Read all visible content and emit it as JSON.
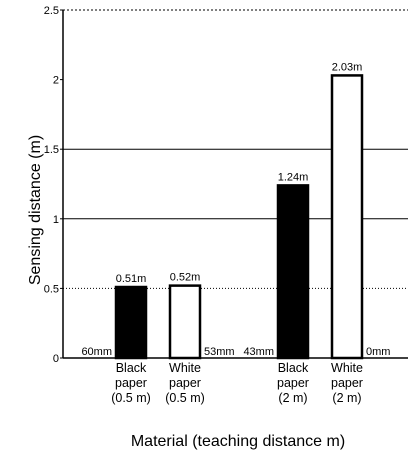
{
  "chart_data": {
    "type": "bar",
    "title": "",
    "xlabel": "Material (teaching distance m)",
    "ylabel": "Sensing distance (m)",
    "ylim": [
      0,
      2.5
    ],
    "y_ticks": [
      "0",
      "0.5",
      "1",
      "1.5",
      "2",
      "2.5"
    ],
    "grid": "horizontal lines at 1, 1.5, 2.5; dotted line at 0.5",
    "bars": [
      {
        "category": [
          "Black",
          "paper",
          "(0.5 m)"
        ],
        "value": 0.51,
        "label": "0.51m",
        "fill": "#000000",
        "min_label": "60mm",
        "min_label_side": "left"
      },
      {
        "category": [
          "White",
          "paper",
          "(0.5 m)"
        ],
        "value": 0.52,
        "label": "0.52m",
        "fill": "#ffffff",
        "min_label": "53mm",
        "min_label_side": "right"
      },
      {
        "category": [
          "Black",
          "paper",
          "(2 m)"
        ],
        "value": 1.24,
        "label": "1.24m",
        "fill": "#000000",
        "min_label": "43mm",
        "min_label_side": "left"
      },
      {
        "category": [
          "White",
          "paper",
          "(2 m)"
        ],
        "value": 2.03,
        "label": "2.03m",
        "fill": "#ffffff",
        "min_label": "0mm",
        "min_label_side": "right"
      }
    ]
  }
}
